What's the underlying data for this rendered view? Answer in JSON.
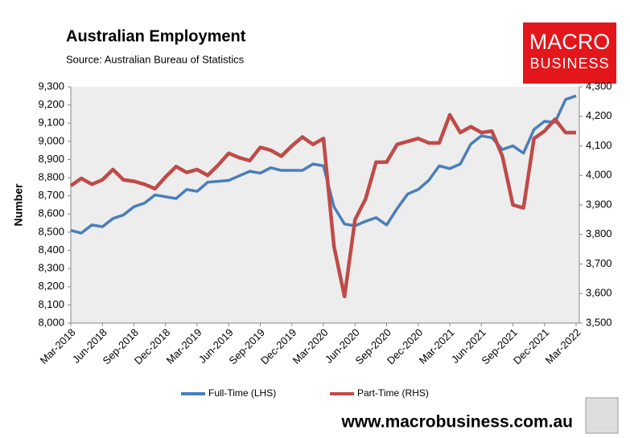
{
  "chart_data": {
    "type": "line",
    "title": "Australian Employment",
    "subtitle": "Source: Australian Bureau of Statistics",
    "ylabel": "Number",
    "categories": [
      "Mar-2018",
      null,
      null,
      "Jun-2018",
      null,
      null,
      "Sep-2018",
      null,
      null,
      "Dec-2018",
      null,
      null,
      "Mar-2019",
      null,
      null,
      "Jun-2019",
      null,
      null,
      "Sep-2019",
      null,
      null,
      "Dec-2019",
      null,
      null,
      "Mar-2020",
      null,
      null,
      "Jun-2020",
      null,
      null,
      "Sep-2020",
      null,
      null,
      "Dec-2020",
      null,
      null,
      "Mar-2021",
      null,
      null,
      "Jun-2021",
      null,
      null,
      "Sep-2021",
      null,
      null,
      "Dec-2021",
      null,
      null,
      "Mar-2022"
    ],
    "series": [
      {
        "name": "Full-Time (LHS)",
        "color": "#4a7ebb",
        "axis": "y",
        "values": [
          8510,
          8495,
          8540,
          8530,
          8575,
          8595,
          8640,
          8660,
          8705,
          8695,
          8685,
          8735,
          8725,
          8775,
          8780,
          8785,
          8810,
          8835,
          8825,
          8855,
          8840,
          8840,
          8840,
          8875,
          8865,
          8640,
          8545,
          8535,
          8560,
          8580,
          8540,
          8630,
          8710,
          8735,
          8785,
          8865,
          8850,
          8875,
          8985,
          9030,
          9020,
          8955,
          8975,
          8935,
          9065,
          9110,
          9105,
          9230,
          9250
        ]
      },
      {
        "name": "Part-Time (RHS)",
        "color": "#be4b48",
        "axis": "y2",
        "values": [
          3965,
          3990,
          3970,
          3985,
          4020,
          3985,
          3980,
          3970,
          3955,
          3995,
          4030,
          4010,
          4020,
          4000,
          4035,
          4075,
          4060,
          4050,
          4095,
          4085,
          4065,
          4100,
          4130,
          4105,
          4125,
          3760,
          3590,
          3850,
          3920,
          4045,
          4045,
          4105,
          4115,
          4125,
          4110,
          4110,
          4205,
          4145,
          4165,
          4145,
          4150,
          4065,
          3900,
          3890,
          4125,
          4150,
          4190,
          4145,
          4145
        ]
      }
    ],
    "ylim": [
      8000,
      9300
    ],
    "yticks": [
      {
        "value": 8000,
        "label": "8,000"
      },
      {
        "value": 8100,
        "label": "8,100"
      },
      {
        "value": 8200,
        "label": "8,200"
      },
      {
        "value": 8300,
        "label": "8,300"
      },
      {
        "value": 8400,
        "label": "8,400"
      },
      {
        "value": 8500,
        "label": "8,500"
      },
      {
        "value": 8600,
        "label": "8,600"
      },
      {
        "value": 8700,
        "label": "8,700"
      },
      {
        "value": 8800,
        "label": "8,800"
      },
      {
        "value": 8900,
        "label": "8,900"
      },
      {
        "value": 9000,
        "label": "9,000"
      },
      {
        "value": 9100,
        "label": "9,100"
      },
      {
        "value": 9200,
        "label": "9,200"
      },
      {
        "value": 9300,
        "label": "9,300"
      }
    ],
    "y2lim": [
      3500,
      4300
    ],
    "y2ticks": [
      {
        "value": 3500,
        "label": "3,500"
      },
      {
        "value": 3600,
        "label": "3,600"
      },
      {
        "value": 3700,
        "label": "3,700"
      },
      {
        "value": 3800,
        "label": "3,800"
      },
      {
        "value": 3900,
        "label": "3,900"
      },
      {
        "value": 4000,
        "label": "4,000"
      },
      {
        "value": 4100,
        "label": "4,100"
      },
      {
        "value": 4200,
        "label": "4,200"
      },
      {
        "value": 4300,
        "label": "4,300"
      }
    ],
    "grid": false,
    "legend": "bottom"
  },
  "branding": {
    "logo_top": "MACRO",
    "logo_bottom": "BUSINESS",
    "website": "www.macrobusiness.com.au"
  }
}
